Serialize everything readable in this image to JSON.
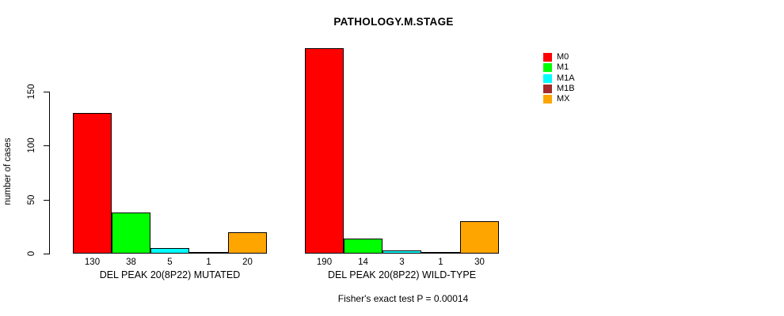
{
  "title": "PATHOLOGY.M.STAGE",
  "footer": "Fisher's exact test P = 0.00014",
  "y_axis": {
    "label": "number of cases",
    "ticks": [
      0,
      50,
      100,
      150
    ]
  },
  "legend": {
    "items": [
      {
        "label": "M0",
        "color": "#FF0000"
      },
      {
        "label": "M1",
        "color": "#00FF00"
      },
      {
        "label": "M1A",
        "color": "#00FFFF"
      },
      {
        "label": "M1B",
        "color": "#A52A2A"
      },
      {
        "label": "MX",
        "color": "#FFA500"
      }
    ]
  },
  "chart_data": {
    "type": "bar",
    "title": "PATHOLOGY.M.STAGE",
    "xlabel": "",
    "ylabel": "number of cases",
    "ylim": [
      0,
      150
    ],
    "yticks": [
      0,
      50,
      100,
      150
    ],
    "grid": false,
    "legend_position": "top-right",
    "categories": [
      "M0",
      "M1",
      "M1A",
      "M1B",
      "MX"
    ],
    "colors": [
      "#FF0000",
      "#00FF00",
      "#00FFFF",
      "#A52A2A",
      "#FFA500"
    ],
    "groups": [
      {
        "label": "DEL PEAK 20(8P22) MUTATED",
        "values": [
          130,
          38,
          5,
          1,
          20
        ]
      },
      {
        "label": "DEL PEAK 20(8P22) WILD-TYPE",
        "values": [
          190,
          14,
          3,
          1,
          30
        ]
      }
    ],
    "bar_value_labels_shown": true,
    "annotation": "Fisher's exact test P = 0.00014"
  }
}
